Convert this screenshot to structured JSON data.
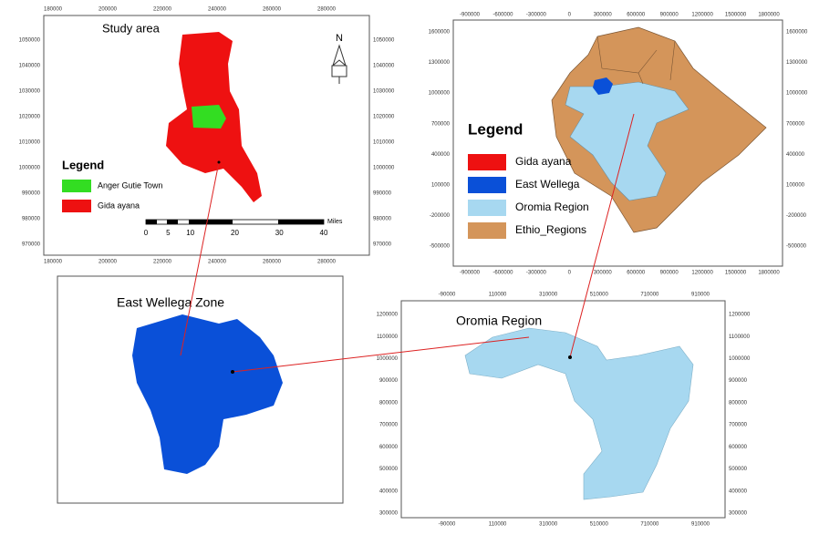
{
  "study_area": {
    "title": "Study area",
    "x_ticks": [
      180000,
      200000,
      220000,
      240000,
      260000,
      280000
    ],
    "y_ticks": [
      1050000,
      1040000,
      1030000,
      1020000,
      1010000,
      1000000,
      990000,
      980000,
      970000
    ],
    "north": "N",
    "legend": {
      "title": "Legend",
      "items": [
        {
          "label": "Anger Gutie Town",
          "color": "#33dd22"
        },
        {
          "label": "Gida ayana",
          "color": "#ee1111"
        }
      ]
    },
    "scale_bar": {
      "labels": [
        0,
        5,
        10,
        20,
        30,
        40
      ],
      "unit": "Miles"
    }
  },
  "ethiopia": {
    "x_ticks": [
      -900000,
      -600000,
      -300000,
      0,
      300000,
      600000,
      900000,
      1200000,
      1500000,
      1800000
    ],
    "y_ticks": [
      1600000,
      1300000,
      1000000,
      700000,
      400000,
      100000,
      -200000,
      -500000
    ],
    "legend": {
      "title": "Legend",
      "items": [
        {
          "label": "Gida ayana",
          "color": "#ee1111"
        },
        {
          "label": "East Wellega",
          "color": "#0a50d8"
        },
        {
          "label": "Oromia Region",
          "color": "#a7d8f0"
        },
        {
          "label": "Ethio_Regions",
          "color": "#d4955a"
        }
      ]
    }
  },
  "east_wellega": {
    "title": "East Wellega Zone"
  },
  "oromia": {
    "title": "Oromia Region",
    "x_ticks": [
      -90000,
      110000,
      310000,
      510000,
      710000,
      910000
    ],
    "y_ticks": [
      1200000,
      1100000,
      1000000,
      900000,
      800000,
      700000,
      600000,
      500000,
      400000,
      300000
    ]
  }
}
